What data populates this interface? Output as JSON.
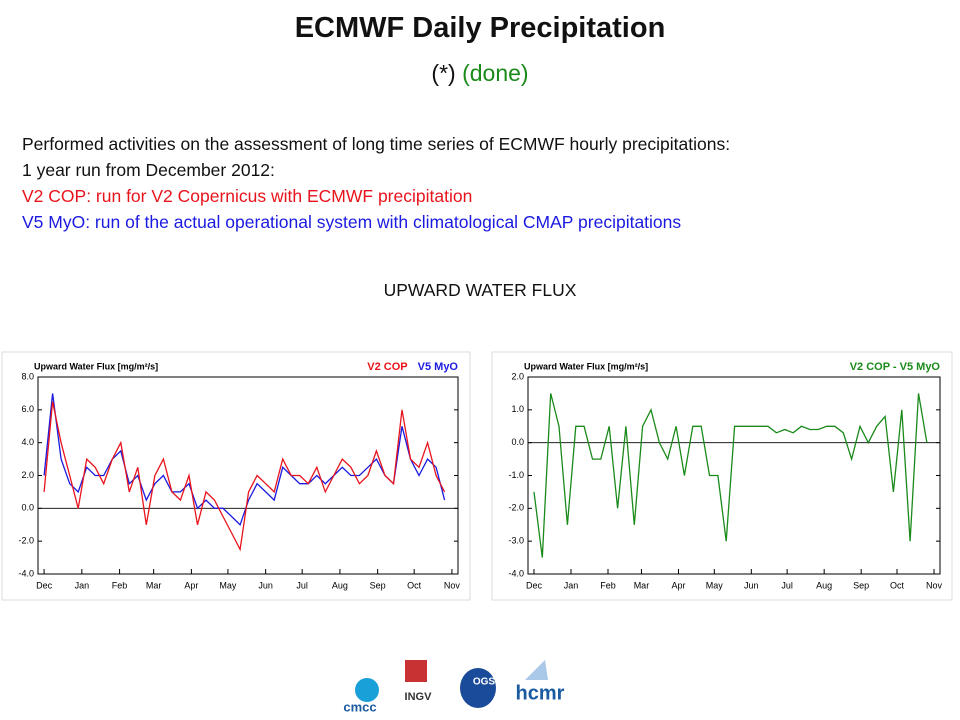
{
  "slide": {
    "title": "ECMWF Daily Precipitation",
    "subtitle": {
      "marker": "(*)",
      "status": "(done)"
    },
    "lines": [
      "Performed activities on the assessment of long time series of ECMWF hourly precipitations:",
      "1 year run from December 2012:",
      "V2 COP: run for V2 Copernicus with ECMWF precipitation",
      "V5 MyO: run of the actual operational system with climatological CMAP precipitations"
    ],
    "section": "UPWARD WATER FLUX",
    "logos": [
      "cmcc",
      "INGV",
      "OGS",
      "hcmr"
    ]
  },
  "chart_data": [
    {
      "type": "line",
      "title": "Upward Water Flux [mg/m²/s]",
      "x": [
        0,
        7,
        14,
        21,
        28,
        35,
        42,
        49,
        56,
        63,
        70,
        77,
        84,
        91,
        98,
        105,
        112,
        119,
        126,
        133,
        140,
        147,
        154,
        161,
        168,
        175,
        182,
        189,
        196,
        203,
        210,
        217,
        224,
        231,
        238,
        245,
        252,
        259,
        266,
        273,
        280,
        287,
        294,
        301,
        308,
        315,
        322,
        329
      ],
      "series": [
        {
          "name": "V2 COP",
          "color": "#e8141c",
          "values": [
            1,
            6.5,
            4,
            2,
            0,
            3,
            2.5,
            1.5,
            3,
            4,
            1,
            2.5,
            -1,
            2,
            3,
            1,
            0.5,
            2,
            -1,
            1,
            0.5,
            -0.5,
            -1.5,
            -2.5,
            1,
            2,
            1.5,
            1,
            3,
            2,
            2,
            1.5,
            2.5,
            1,
            2,
            3,
            2.5,
            1.5,
            2,
            3.5,
            2,
            1.5,
            6,
            3,
            2.5,
            4,
            2,
            1
          ]
        },
        {
          "name": "V5 MyO",
          "color": "#1a1ae0",
          "values": [
            2,
            7,
            3,
            1.5,
            1,
            2.5,
            2,
            2,
            3,
            3.5,
            1.5,
            2,
            0.5,
            1.5,
            2,
            1,
            1,
            1.5,
            0,
            0.5,
            0,
            0,
            -0.5,
            -1,
            0.5,
            1.5,
            1,
            0.5,
            2.5,
            2,
            1.5,
            1.5,
            2,
            1.5,
            2,
            2.5,
            2,
            2,
            2.5,
            3,
            2,
            1.5,
            5,
            3,
            2,
            3,
            2.5,
            0.5
          ]
        }
      ],
      "xlim": [
        -5,
        340
      ],
      "xticks": [
        {
          "value": 0,
          "label": "Dec"
        },
        {
          "value": 31,
          "label": "Jan"
        },
        {
          "value": 62,
          "label": "Feb"
        },
        {
          "value": 90,
          "label": "Mar"
        },
        {
          "value": 121,
          "label": "Apr"
        },
        {
          "value": 151,
          "label": "May"
        },
        {
          "value": 182,
          "label": "Jun"
        },
        {
          "value": 212,
          "label": "Jul"
        },
        {
          "value": 243,
          "label": "Aug"
        },
        {
          "value": 274,
          "label": "Sep"
        },
        {
          "value": 304,
          "label": "Oct"
        },
        {
          "value": 335,
          "label": "Nov"
        }
      ],
      "ylim": [
        -4,
        8
      ],
      "yticks": [
        {
          "value": -4,
          "label": "-4.0"
        },
        {
          "value": -2,
          "label": "-2.0"
        },
        {
          "value": 0,
          "label": "0.0"
        },
        {
          "value": 2,
          "label": "2.0"
        },
        {
          "value": 4,
          "label": "4.0"
        },
        {
          "value": 6,
          "label": "6.0"
        },
        {
          "value": 8,
          "label": "8.0"
        }
      ]
    },
    {
      "type": "line",
      "title": "Upward Water Flux [mg/m²/s]",
      "x": [
        0,
        7,
        14,
        21,
        28,
        35,
        42,
        49,
        56,
        63,
        70,
        77,
        84,
        91,
        98,
        105,
        112,
        119,
        126,
        133,
        140,
        147,
        154,
        161,
        168,
        175,
        182,
        189,
        196,
        203,
        210,
        217,
        224,
        231,
        238,
        245,
        252,
        259,
        266,
        273,
        280,
        287,
        294,
        301,
        308,
        315,
        322,
        329
      ],
      "series": [
        {
          "name": "V2 COP - V5 MyO",
          "color": "#1a8a1a",
          "values": [
            -1.5,
            -3.5,
            1.5,
            0.5,
            -2.5,
            0.5,
            0.5,
            -0.5,
            -0.5,
            0.5,
            -2,
            0.5,
            -2.5,
            0.5,
            1,
            0,
            -0.5,
            0.5,
            -1,
            0.5,
            0.5,
            -1,
            -1,
            -3,
            0.5,
            0.5,
            0.5,
            0.5,
            0.5,
            0.3,
            0.4,
            0.3,
            0.5,
            0.4,
            0.4,
            0.5,
            0.5,
            0.3,
            -0.5,
            0.5,
            0,
            0.5,
            0.8,
            -1.5,
            1,
            -3,
            1.5,
            0
          ]
        }
      ],
      "xlim": [
        -5,
        340
      ],
      "xticks": [
        {
          "value": 0,
          "label": "Dec"
        },
        {
          "value": 31,
          "label": "Jan"
        },
        {
          "value": 62,
          "label": "Feb"
        },
        {
          "value": 90,
          "label": "Mar"
        },
        {
          "value": 121,
          "label": "Apr"
        },
        {
          "value": 151,
          "label": "May"
        },
        {
          "value": 182,
          "label": "Jun"
        },
        {
          "value": 212,
          "label": "Jul"
        },
        {
          "value": 243,
          "label": "Aug"
        },
        {
          "value": 274,
          "label": "Sep"
        },
        {
          "value": 304,
          "label": "Oct"
        },
        {
          "value": 335,
          "label": "Nov"
        }
      ],
      "ylim": [
        -4,
        2
      ],
      "yticks": [
        {
          "value": -4,
          "label": "-4.0"
        },
        {
          "value": -3,
          "label": "-3.0"
        },
        {
          "value": -2,
          "label": "-2.0"
        },
        {
          "value": -1,
          "label": "-1.0"
        },
        {
          "value": 0,
          "label": "0.0"
        },
        {
          "value": 1,
          "label": "1.0"
        },
        {
          "value": 2,
          "label": "2.0"
        }
      ]
    }
  ]
}
